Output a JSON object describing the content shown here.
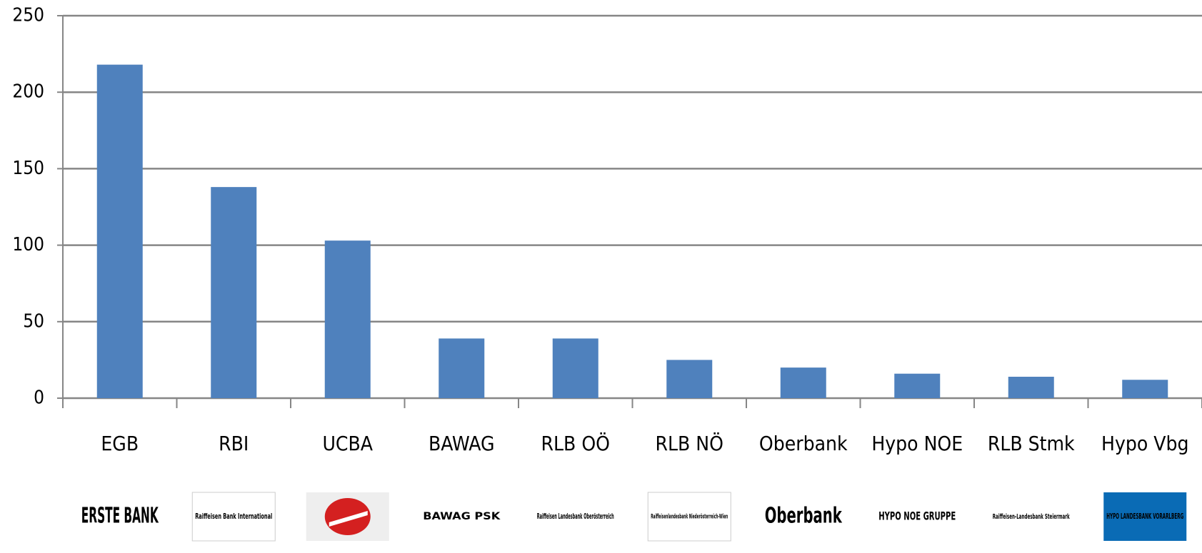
{
  "chart_data": {
    "type": "bar",
    "categories": [
      "EGB",
      "RBI",
      "UCBA",
      "BAWAG",
      "RLB OÖ",
      "RLB NÖ",
      "Oberbank",
      "Hypo NOE",
      "RLB Stmk",
      "Hypo Vbg"
    ],
    "values": [
      218,
      138,
      103,
      39,
      39,
      25,
      20,
      16,
      14,
      12
    ],
    "color": "#4f81bd",
    "ylim": [
      0,
      250
    ],
    "yticks": [
      0,
      50,
      100,
      150,
      200,
      250
    ],
    "grid": true,
    "logos": [
      "ERSTE BANK",
      "Raiffeisen Bank International",
      null,
      "BAWAG PSK",
      "Raiffeisen Landesbank Oberösterreich",
      "Raiffeisenlandesbank Niederösterreich-Wien",
      "Oberbank",
      "HYPO NOE GRUPPE",
      "Raiffeisen-Landesbank Steiermark",
      "HYPO LANDESBANK VORARLBERG"
    ]
  }
}
